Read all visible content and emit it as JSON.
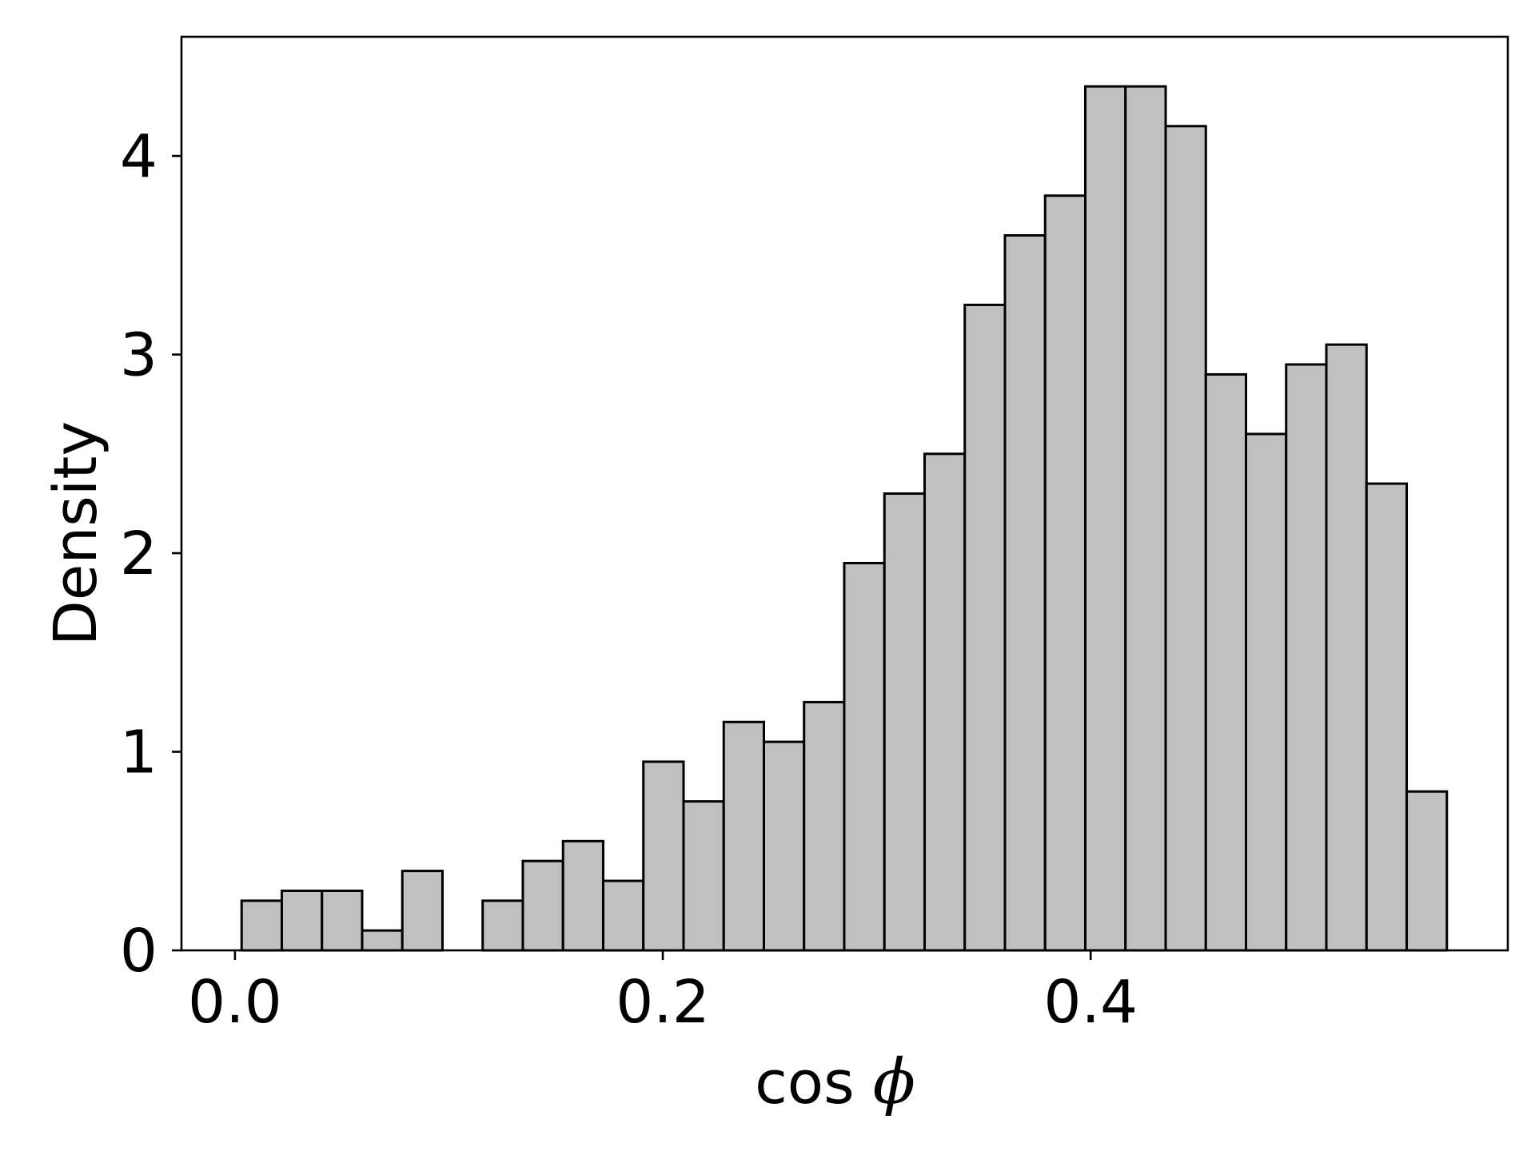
{
  "chart_data": {
    "type": "bar",
    "subtype": "histogram",
    "title": "",
    "xlabel_main": "cos",
    "xlabel_symbol": "ϕ",
    "ylabel": "Density",
    "x_ticks": [
      0.0,
      0.2,
      0.4
    ],
    "x_tick_labels": [
      "0.0",
      "0.2",
      "0.4"
    ],
    "y_ticks": [
      0,
      1,
      2,
      3,
      4
    ],
    "y_tick_labels": [
      "0",
      "1",
      "2",
      "3",
      "4"
    ],
    "xlim": [
      -0.025,
      0.595
    ],
    "ylim": [
      0,
      4.6
    ],
    "bin_edges": [
      0.00311,
      0.02189,
      0.04067,
      0.05945,
      0.07823,
      0.09701,
      0.11579,
      0.13457,
      0.15335,
      0.17213,
      0.19091,
      0.20969,
      0.22847,
      0.24725,
      0.26603,
      0.28481,
      0.30359,
      0.32237,
      0.34115,
      0.35993,
      0.37871,
      0.39749,
      0.41627,
      0.43505,
      0.45383,
      0.47261,
      0.49139,
      0.51017,
      0.52895,
      0.54773,
      0.56651
    ],
    "values": [
      0.25,
      0.3,
      0.3,
      0.1,
      0.4,
      0.0,
      0.25,
      0.45,
      0.55,
      0.35,
      0.95,
      0.75,
      1.15,
      1.05,
      1.25,
      1.95,
      2.3,
      2.5,
      3.25,
      3.6,
      3.8,
      4.35,
      4.35,
      4.15,
      2.9,
      2.6,
      2.95,
      3.05,
      2.35,
      0.8
    ],
    "bar_color": "#c0c0c0",
    "edge_color": "#000000",
    "grid": false,
    "legend": "none"
  }
}
